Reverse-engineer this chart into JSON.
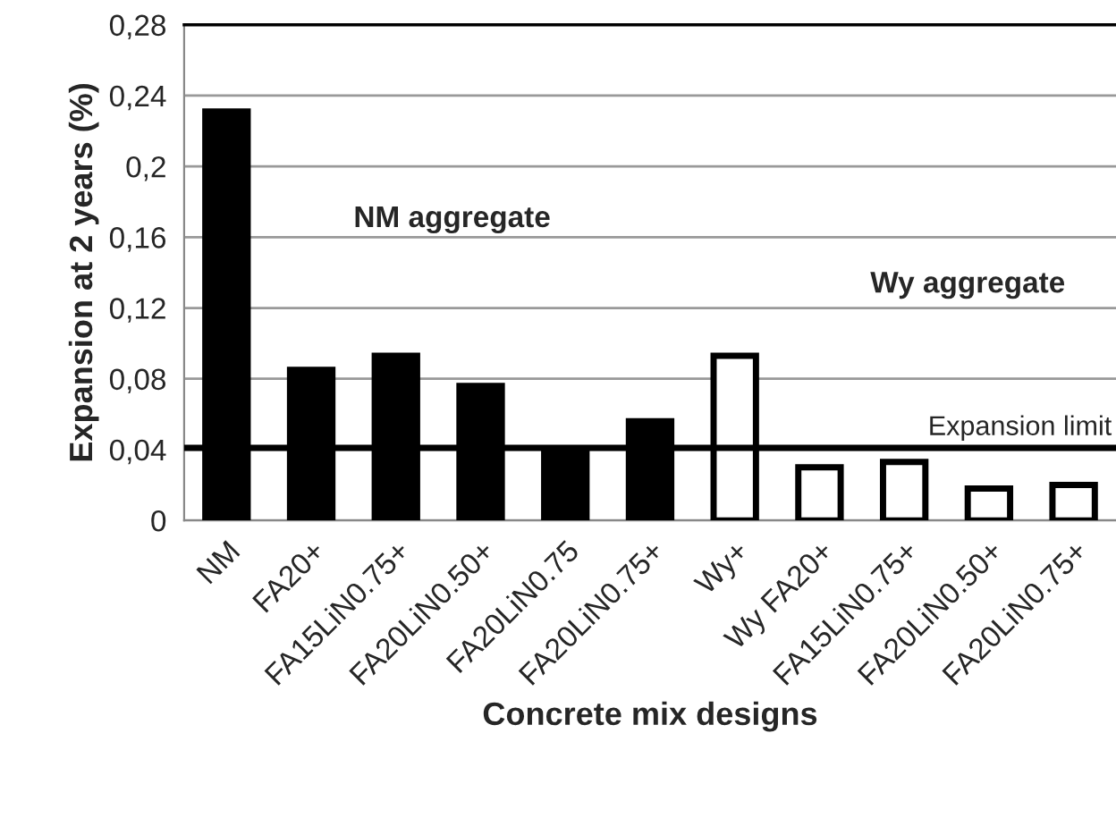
{
  "chart_data": {
    "type": "bar",
    "xlabel": "Concrete mix designs",
    "ylabel": "Expansion at 2 years (%)",
    "categories": [
      "NM",
      "FA20+",
      "FA15LiN0.75+",
      "FA20LiN0.50+",
      "FA20LiN0.75",
      "FA20LiN0.75+",
      "Wy+",
      "Wy FA20+",
      "FA15LiN0.75+",
      "FA20LiN0.50+",
      "FA20LiN0.75+"
    ],
    "series": [
      {
        "color": "#000000",
        "values": [
          0.231,
          0.085,
          0.093,
          0.076,
          0.04,
          0.056,
          null,
          null,
          null,
          null,
          null
        ]
      },
      {
        "color": "#ffffff",
        "values": [
          null,
          null,
          null,
          null,
          null,
          null,
          0.093,
          0.03,
          0.033,
          0.018,
          0.02
        ]
      }
    ],
    "ylim": [
      0,
      0.28
    ],
    "yticks": [
      {
        "value": 0,
        "label": "0"
      },
      {
        "value": 0.04,
        "label": "0,04"
      },
      {
        "value": 0.08,
        "label": "0,08"
      },
      {
        "value": 0.12,
        "label": "0,12"
      },
      {
        "value": 0.16,
        "label": "0,16"
      },
      {
        "value": 0.2,
        "label": "0,2"
      },
      {
        "value": 0.24,
        "label": "0,24"
      },
      {
        "value": 0.28,
        "label": "0,28"
      }
    ],
    "ref_lines": [
      {
        "axis": "y",
        "value": 0.041,
        "label": "Expansion limit",
        "color": "#000000"
      }
    ],
    "annotations": [
      "NM aggregate",
      "Wy aggregate"
    ],
    "grid": "y",
    "legend": false
  }
}
